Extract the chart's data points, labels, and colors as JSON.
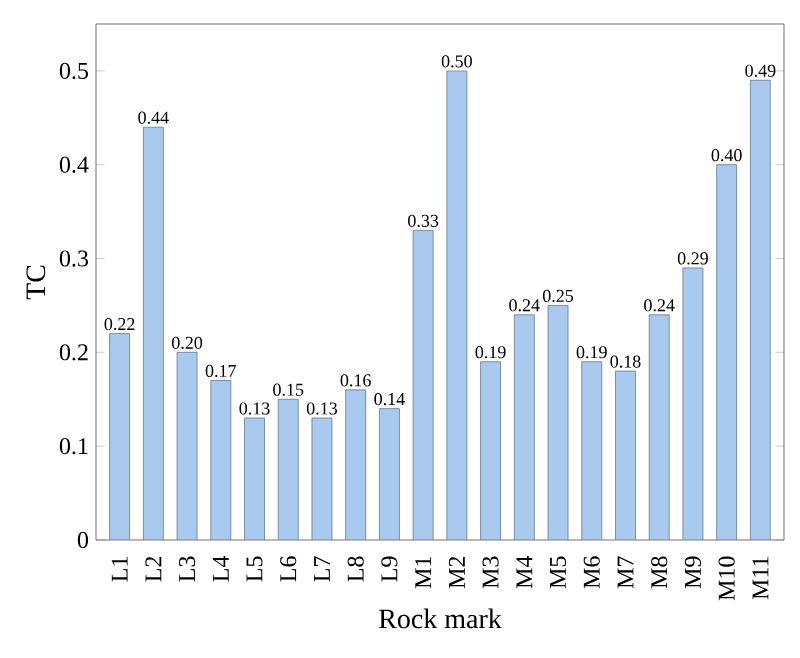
{
  "chart_data": {
    "type": "bar",
    "xlabel": "Rock mark",
    "ylabel": "TC",
    "categories": [
      "L1",
      "L2",
      "L3",
      "L4",
      "L5",
      "L6",
      "L7",
      "L8",
      "L9",
      "M1",
      "M2",
      "M3",
      "M4",
      "M5",
      "M6",
      "M7",
      "M8",
      "M9",
      "M10",
      "M11"
    ],
    "values": [
      0.22,
      0.44,
      0.2,
      0.17,
      0.13,
      0.15,
      0.13,
      0.16,
      0.14,
      0.33,
      0.5,
      0.19,
      0.24,
      0.25,
      0.19,
      0.18,
      0.24,
      0.29,
      0.4,
      0.49
    ],
    "value_labels": [
      "0.22",
      "0.44",
      "0.20",
      "0.17",
      "0.13",
      "0.15",
      "0.13",
      "0.16",
      "0.14",
      "0.33",
      "0.50",
      "0.19",
      "0.24",
      "0.25",
      "0.19",
      "0.18",
      "0.24",
      "0.29",
      "0.40",
      "0.49"
    ],
    "color": "#a9c9ee",
    "ylim": [
      0,
      0.55
    ],
    "yticks": [
      0,
      0.1,
      0.2,
      0.3,
      0.4,
      0.5
    ]
  }
}
